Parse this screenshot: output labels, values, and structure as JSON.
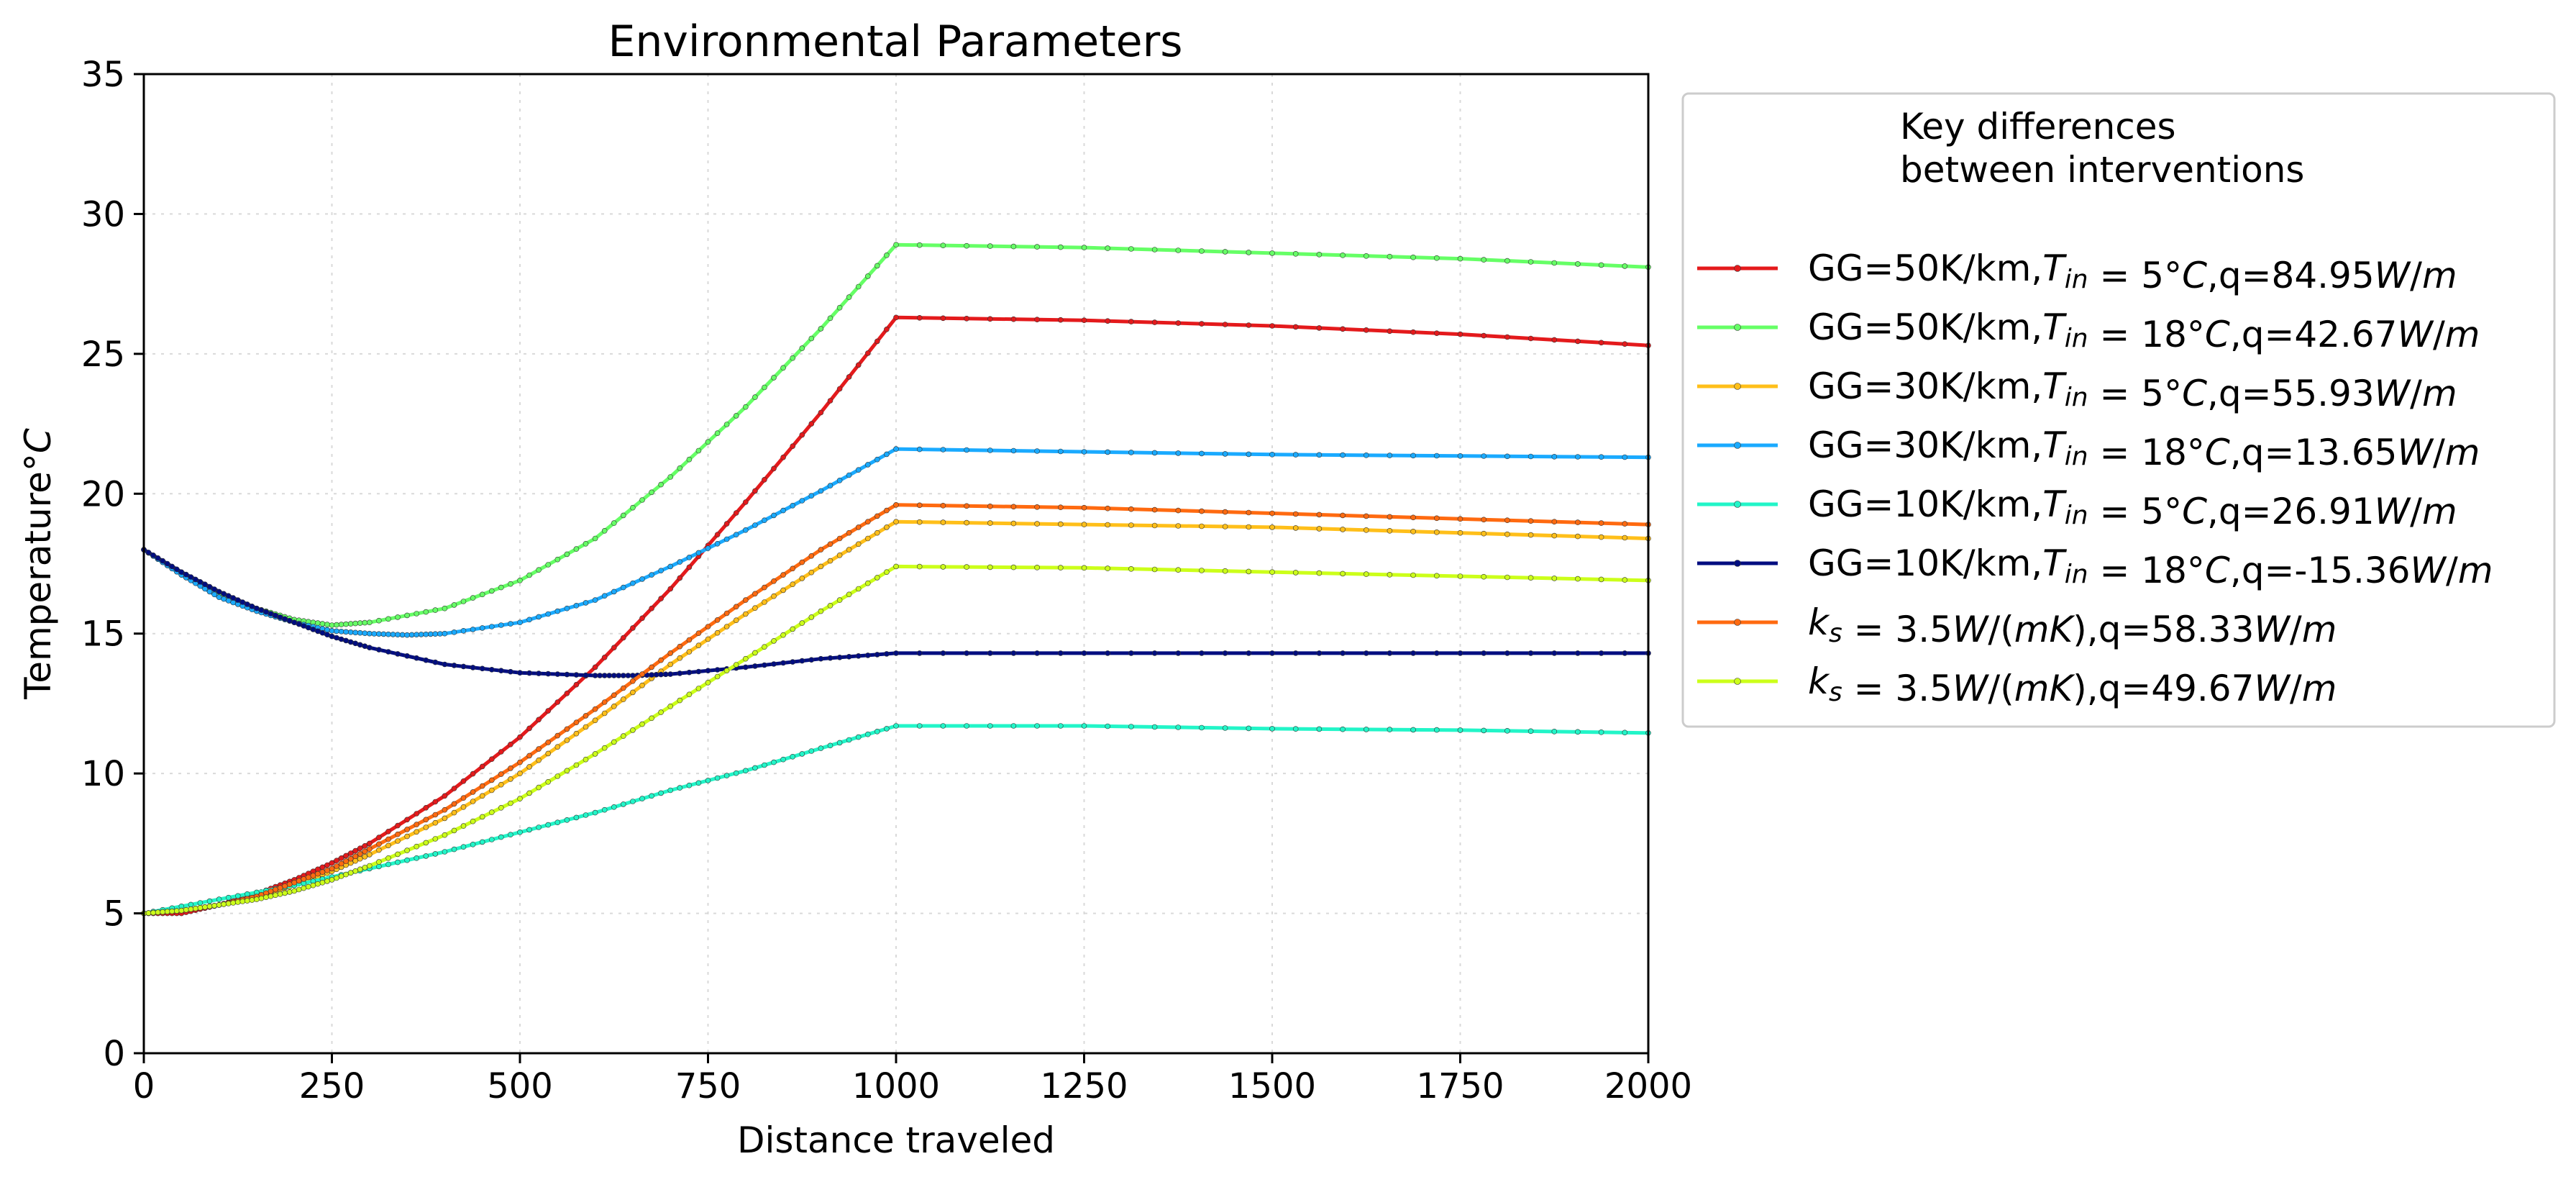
{
  "chart_data": {
    "type": "line",
    "title": "Environmental Parameters",
    "xlabel": "Distance traveled",
    "ylabel_prefix": "Temperature",
    "ylabel_unit": "°C",
    "xlim": [
      0,
      2000
    ],
    "ylim": [
      0,
      35
    ],
    "xticks": [
      0,
      250,
      500,
      750,
      1000,
      1250,
      1500,
      1750,
      2000
    ],
    "yticks": [
      0,
      5,
      10,
      15,
      20,
      25,
      30,
      35
    ],
    "grid": true,
    "legend_position": "outside-right-top",
    "legend_title": [
      "Key differences",
      "between interventions"
    ],
    "series": [
      {
        "name": "GG=50K/km,T_in=5°C,q=84.95W/m",
        "label_parts": [
          {
            "text": "GG=50K/km,",
            "italic": false
          },
          {
            "text": "T",
            "italic": true
          },
          {
            "text": "in",
            "italic": true,
            "sub": true
          },
          {
            "text": " = 5°",
            "italic": false
          },
          {
            "text": "C",
            "italic": true
          },
          {
            "text": ",q=84.95",
            "italic": false
          },
          {
            "text": "W",
            "italic": true
          },
          {
            "text": "/",
            "italic": false
          },
          {
            "text": "m",
            "italic": true
          }
        ],
        "color": "#e41a1c",
        "x": [
          0,
          50,
          100,
          150,
          200,
          250,
          300,
          400,
          500,
          600,
          700,
          800,
          900,
          1000,
          1250,
          1500,
          1750,
          2000
        ],
        "y": [
          5.0,
          5.0,
          5.3,
          5.7,
          6.2,
          6.8,
          7.5,
          9.2,
          11.3,
          13.8,
          16.6,
          19.7,
          22.9,
          26.3,
          26.2,
          26.0,
          25.7,
          25.3
        ]
      },
      {
        "name": "GG=50K/km,T_in=18°C,q=42.67W/m",
        "label_parts": [
          {
            "text": "GG=50K/km,",
            "italic": false
          },
          {
            "text": "T",
            "italic": true
          },
          {
            "text": "in",
            "italic": true,
            "sub": true
          },
          {
            "text": " = 18°",
            "italic": false
          },
          {
            "text": "C",
            "italic": true
          },
          {
            "text": ",q=42.67",
            "italic": false
          },
          {
            "text": "W",
            "italic": true
          },
          {
            "text": "/",
            "italic": false
          },
          {
            "text": "m",
            "italic": true
          }
        ],
        "color": "#66ff66",
        "x": [
          0,
          50,
          100,
          150,
          200,
          250,
          300,
          400,
          500,
          600,
          700,
          800,
          900,
          1000,
          1250,
          1500,
          1750,
          2000
        ],
        "y": [
          18.0,
          17.1,
          16.4,
          15.9,
          15.5,
          15.3,
          15.4,
          15.9,
          16.9,
          18.4,
          20.6,
          23.1,
          25.9,
          28.9,
          28.8,
          28.6,
          28.4,
          28.1
        ]
      },
      {
        "name": "GG=30K/km,T_in=5°C,q=55.93W/m",
        "label_parts": [
          {
            "text": "GG=30K/km,",
            "italic": false
          },
          {
            "text": "T",
            "italic": true
          },
          {
            "text": "in",
            "italic": true,
            "sub": true
          },
          {
            "text": " = 5°",
            "italic": false
          },
          {
            "text": "C",
            "italic": true
          },
          {
            "text": ",q=55.93",
            "italic": false
          },
          {
            "text": "W",
            "italic": true
          },
          {
            "text": "/",
            "italic": false
          },
          {
            "text": "m",
            "italic": true
          }
        ],
        "color": "#ffbf1a",
        "x": [
          0,
          50,
          100,
          150,
          200,
          250,
          300,
          400,
          500,
          600,
          700,
          800,
          900,
          1000,
          1250,
          1500,
          1750,
          2000
        ],
        "y": [
          5.0,
          5.1,
          5.3,
          5.6,
          6.0,
          6.5,
          7.1,
          8.4,
          10.0,
          11.9,
          13.9,
          15.7,
          17.4,
          19.0,
          18.9,
          18.8,
          18.6,
          18.4
        ]
      },
      {
        "name": "GG=30K/km,T_in=18°C,q=13.65W/m",
        "label_parts": [
          {
            "text": "GG=30K/km,",
            "italic": false
          },
          {
            "text": "T",
            "italic": true
          },
          {
            "text": "in",
            "italic": true,
            "sub": true
          },
          {
            "text": " = 18°",
            "italic": false
          },
          {
            "text": "C",
            "italic": true
          },
          {
            "text": ",q=13.65",
            "italic": false
          },
          {
            "text": "W",
            "italic": true
          },
          {
            "text": "/",
            "italic": false
          },
          {
            "text": "m",
            "italic": true
          }
        ],
        "color": "#1aaaff",
        "x": [
          0,
          50,
          100,
          150,
          200,
          250,
          300,
          350,
          400,
          500,
          600,
          700,
          800,
          900,
          1000,
          1250,
          1500,
          1750,
          2000
        ],
        "y": [
          18.0,
          17.1,
          16.3,
          15.8,
          15.4,
          15.1,
          15.0,
          14.95,
          15.0,
          15.4,
          16.2,
          17.4,
          18.7,
          20.1,
          21.6,
          21.5,
          21.4,
          21.35,
          21.3
        ]
      },
      {
        "name": "GG=10K/km,T_in=5°C,q=26.91W/m",
        "label_parts": [
          {
            "text": "GG=10K/km,",
            "italic": false
          },
          {
            "text": "T",
            "italic": true
          },
          {
            "text": "in",
            "italic": true,
            "sub": true
          },
          {
            "text": " = 5°",
            "italic": false
          },
          {
            "text": "C",
            "italic": true
          },
          {
            "text": ",q=26.91",
            "italic": false
          },
          {
            "text": "W",
            "italic": true
          },
          {
            "text": "/",
            "italic": false
          },
          {
            "text": "m",
            "italic": true
          }
        ],
        "color": "#22f5c8",
        "x": [
          0,
          100,
          200,
          300,
          400,
          500,
          600,
          700,
          800,
          900,
          1000,
          1250,
          1500,
          1750,
          2000
        ],
        "y": [
          5.0,
          5.5,
          6.0,
          6.6,
          7.2,
          7.9,
          8.6,
          9.4,
          10.1,
          10.9,
          11.7,
          11.7,
          11.6,
          11.55,
          11.45
        ]
      },
      {
        "name": "GG=10K/km,T_in=18°C,q=-15.36W/m",
        "label_parts": [
          {
            "text": "GG=10K/km,",
            "italic": false
          },
          {
            "text": "T",
            "italic": true
          },
          {
            "text": "in",
            "italic": true,
            "sub": true
          },
          {
            "text": " = 18°",
            "italic": false
          },
          {
            "text": "C",
            "italic": true
          },
          {
            "text": ",q=-15.36",
            "italic": false
          },
          {
            "text": "W",
            "italic": true
          },
          {
            "text": "/",
            "italic": false
          },
          {
            "text": "m",
            "italic": true
          }
        ],
        "color": "#000d80",
        "x": [
          0,
          50,
          100,
          150,
          200,
          250,
          300,
          400,
          500,
          600,
          650,
          700,
          800,
          900,
          1000,
          1250,
          1500,
          1750,
          2000
        ],
        "y": [
          18.0,
          17.2,
          16.5,
          15.9,
          15.4,
          14.9,
          14.5,
          13.9,
          13.6,
          13.5,
          13.5,
          13.55,
          13.8,
          14.1,
          14.3,
          14.3,
          14.3,
          14.3,
          14.3
        ]
      },
      {
        "name": "k_s = 3.5W/(mK),q=58.33W/m",
        "label_parts": [
          {
            "text": "k",
            "italic": true
          },
          {
            "text": "s",
            "italic": true,
            "sub": true
          },
          {
            "text": " = 3.5",
            "italic": false
          },
          {
            "text": "W",
            "italic": true
          },
          {
            "text": "/(",
            "italic": false
          },
          {
            "text": "mK",
            "italic": true
          },
          {
            "text": "),q=58.33",
            "italic": false
          },
          {
            "text": "W",
            "italic": true
          },
          {
            "text": "/",
            "italic": false
          },
          {
            "text": "m",
            "italic": true
          }
        ],
        "color": "#ff6a10",
        "x": [
          0,
          50,
          100,
          150,
          200,
          250,
          300,
          400,
          500,
          600,
          700,
          800,
          900,
          1000,
          1250,
          1500,
          1750,
          2000
        ],
        "y": [
          5.0,
          5.1,
          5.3,
          5.6,
          6.1,
          6.6,
          7.3,
          8.7,
          10.4,
          12.3,
          14.3,
          16.2,
          18.0,
          19.6,
          19.5,
          19.3,
          19.1,
          18.9
        ]
      },
      {
        "name": "k_s = 3.5W/(mK),q=49.67W/m",
        "label_parts": [
          {
            "text": "k",
            "italic": true
          },
          {
            "text": "s",
            "italic": true,
            "sub": true
          },
          {
            "text": " = 3.5",
            "italic": false
          },
          {
            "text": "W",
            "italic": true
          },
          {
            "text": "/(",
            "italic": false
          },
          {
            "text": "mK",
            "italic": true
          },
          {
            "text": "),q=49.67",
            "italic": false
          },
          {
            "text": "W",
            "italic": true
          },
          {
            "text": "/",
            "italic": false
          },
          {
            "text": "m",
            "italic": true
          }
        ],
        "color": "#ccff1a",
        "x": [
          0,
          50,
          100,
          150,
          200,
          250,
          300,
          400,
          500,
          600,
          700,
          800,
          900,
          1000,
          1250,
          1500,
          1750,
          2000
        ],
        "y": [
          5.0,
          5.1,
          5.3,
          5.5,
          5.8,
          6.2,
          6.7,
          7.8,
          9.1,
          10.7,
          12.4,
          14.1,
          15.8,
          17.4,
          17.35,
          17.2,
          17.05,
          16.9
        ]
      }
    ]
  }
}
